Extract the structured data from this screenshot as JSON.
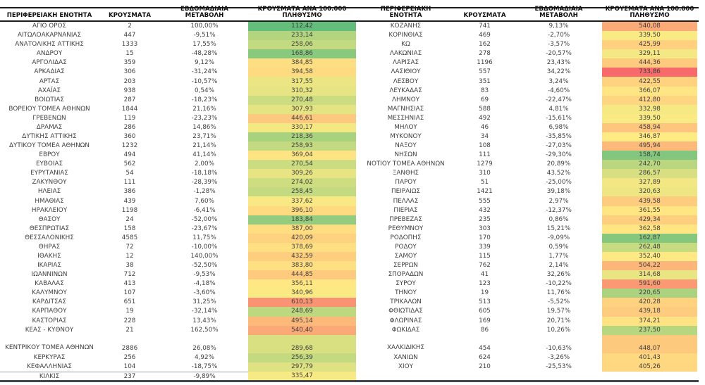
{
  "report": {
    "columns": [
      "region",
      "cases",
      "weekly_change",
      "cases_per_100k"
    ],
    "heatmap": {
      "applies_to": "cases_per_100k",
      "min": 112.42,
      "mid": 346.87,
      "max": 733.86,
      "min_color": "#63BE7B",
      "mid_color": "#FFEB84",
      "max_color": "#F8696B"
    },
    "tables": [
      {
        "id": "left",
        "headers": [
          {
            "name": "column-header-region",
            "lines": [
              "ΠΕΡΙΦΕΡΕΙΑΚΗ ΕΝΟΤΗΤΑ"
            ]
          },
          {
            "name": "column-header-cases",
            "lines": [
              "ΚΡΟΥΣΜΑΤΑ"
            ]
          },
          {
            "name": "column-header-weekly-change",
            "lines": [
              "ΕΒΔΟΜΑΔΙΑΙΑ",
              "ΜΕΤΑΒΟΛΗ"
            ]
          },
          {
            "name": "column-header-cases-per-100k",
            "lines": [
              "ΚΡΟΥΣΜΑΤΑ ΑΝΑ 100.000",
              "ΠΛΗΘΥΣΜΟ"
            ]
          }
        ],
        "tall_row_index": 34,
        "last_row_separator": true,
        "rows": [
          [
            "ΑΓΙΟ ΟΡΟΣ",
            "2",
            "100,00%",
            "112,42"
          ],
          [
            "ΑΙΤΩΛΟΑΚΑΡΝΑΝΙΑΣ",
            "447",
            "-9,51%",
            "233,14"
          ],
          [
            "ΑΝΑΤΟΛΙΚΗΣ ΑΤΤΙΚΗΣ",
            "1333",
            "17,55%",
            "258,06"
          ],
          [
            "ΑΝΔΡΟΥ",
            "15",
            "-48,28%",
            "168,86"
          ],
          [
            "ΑΡΓΟΛΙΔΑΣ",
            "359",
            "9,12%",
            "384,85"
          ],
          [
            "ΑΡΚΑΔΙΑΣ",
            "306",
            "-31,24%",
            "394,58"
          ],
          [
            "ΑΡΤΑΣ",
            "203",
            "-10,57%",
            "317,55"
          ],
          [
            "ΑΧΑΪΑΣ",
            "938",
            "0,54%",
            "310,32"
          ],
          [
            "ΒΟΙΩΤΙΑΣ",
            "287",
            "-18,23%",
            "270,48"
          ],
          [
            "ΒΟΡΕΙΟΥ ΤΟΜΕΑ ΑΘΗΝΩΝ",
            "1844",
            "21,16%",
            "307,93"
          ],
          [
            "ΓΡΕΒΕΝΩΝ",
            "119",
            "-23,23%",
            "446,61"
          ],
          [
            "ΔΡΑΜΑΣ",
            "286",
            "14,86%",
            "330,17"
          ],
          [
            "ΔΥΤΙΚΗΣ ΑΤΤΙΚΗΣ",
            "360",
            "23,71%",
            "218,36"
          ],
          [
            "ΔΥΤΙΚΟΥ ΤΟΜΕΑ ΑΘΗΝΩΝ",
            "1232",
            "21,14%",
            "258,93"
          ],
          [
            "ΕΒΡΟΥ",
            "494",
            "41,14%",
            "369,04"
          ],
          [
            "ΕΥΒΟΙΑΣ",
            "562",
            "2,00%",
            "270,54"
          ],
          [
            "ΕΥΡΥΤΑΝΙΑΣ",
            "54",
            "-18,18%",
            "309,26"
          ],
          [
            "ΖΑΚΥΝΘΟΥ",
            "111",
            "-28,39%",
            "274,02"
          ],
          [
            "ΗΛΕΙΑΣ",
            "386",
            "-1,28%",
            "258,45"
          ],
          [
            "ΗΜΑΘΙΑΣ",
            "439",
            "7,60%",
            "337,62"
          ],
          [
            "ΗΡΑΚΛΕΙΟΥ",
            "1198",
            "-6,41%",
            "396,10"
          ],
          [
            "ΘΑΣΟΥ",
            "24",
            "-52,00%",
            "183,84"
          ],
          [
            "ΘΕΣΠΡΩΤΙΑΣ",
            "158",
            "-23,67%",
            "387,00"
          ],
          [
            "ΘΕΣΣΑΛΟΝΙΚΗΣ",
            "4585",
            "11,75%",
            "420,09"
          ],
          [
            "ΘΗΡΑΣ",
            "72",
            "-10,00%",
            "378,69"
          ],
          [
            "ΙΘΑΚΗΣ",
            "12",
            "140,00%",
            "432,59"
          ],
          [
            "ΙΚΑΡΙΑΣ",
            "38",
            "-52,50%",
            "383,80"
          ],
          [
            "ΙΩΑΝΝΙΝΩΝ",
            "712",
            "-9,53%",
            "444,85"
          ],
          [
            "ΚΑΒΑΛΑΣ",
            "413",
            "-4,18%",
            "356,11"
          ],
          [
            "ΚΑΛΥΜΝΟΥ",
            "107",
            "-3,60%",
            "340,96"
          ],
          [
            "ΚΑΡΔΙΤΣΑΣ",
            "651",
            "31,25%",
            "610,13"
          ],
          [
            "ΚΑΡΠΑΘΟΥ",
            "19",
            "-32,14%",
            "248,69"
          ],
          [
            "ΚΑΣΤΟΡΙΑΣ",
            "228",
            "13,43%",
            "495,14"
          ],
          [
            "ΚΕΑΣ - ΚΥΘΝΟΥ",
            "21",
            "162,50%",
            "540,40"
          ],
          [
            "ΚΕΝΤΡΙΚΟΥ ΤΟΜΕΑ ΑΘΗΝΩΝ",
            "2886",
            "26,08%",
            "289,68"
          ],
          [
            "ΚΕΡΚΥΡΑΣ",
            "256",
            "4,92%",
            "256,39"
          ],
          [
            "ΚΕΦΑΛΛΗΝΙΑΣ",
            "104",
            "-18,75%",
            "297,79"
          ],
          [
            "ΚΙΛΚΙΣ",
            "237",
            "-9,89%",
            "335,47"
          ]
        ]
      },
      {
        "id": "right",
        "headers": [
          {
            "name": "column-header-region",
            "lines": [
              "ΠΕΡΙΦΕΡΕΙΑΚΗ",
              "ΕΝΟΤΗΤΑ"
            ]
          },
          {
            "name": "column-header-cases",
            "lines": [
              "ΚΡΟΥΣΜΑΤΑ"
            ]
          },
          {
            "name": "column-header-weekly-change",
            "lines": [
              "ΕΒΔΟΜΑΔΙΑΙΑ",
              "ΜΕΤΑΒΟΛΗ"
            ]
          },
          {
            "name": "column-header-cases-per-100k",
            "lines": [
              "ΚΡΟΥΣΜΑΤΑ ΑΝΑ 100.000",
              "ΠΛΗΘΥΣΜΟ"
            ]
          }
        ],
        "tall_row_index": 34,
        "last_row_separator": false,
        "rows": [
          [
            "ΚΟΖΑΝΗΣ",
            "741",
            "9,13%",
            "540,08"
          ],
          [
            "ΚΟΡΙΝΘΙΑΣ",
            "469",
            "-2,70%",
            "339,50"
          ],
          [
            "ΚΩ",
            "162",
            "-3,57%",
            "425,99"
          ],
          [
            "ΛΑΚΩΝΙΑΣ",
            "278",
            "-20,57%",
            "329,11"
          ],
          [
            "ΛΑΡΙΣΑΣ",
            "1196",
            "23,43%",
            "444,36"
          ],
          [
            "ΛΑΣΙΘΙΟΥ",
            "557",
            "34,22%",
            "733,86"
          ],
          [
            "ΛΕΣΒΟΥ",
            "351",
            "3,24%",
            "422,55"
          ],
          [
            "ΛΕΥΚΑΔΑΣ",
            "83",
            "-4,60%",
            "366,07"
          ],
          [
            "ΛΗΜΝΟΥ",
            "69",
            "-22,47%",
            "412,80"
          ],
          [
            "ΜΑΓΝΗΣΙΑΣ",
            "588",
            "4,81%",
            "332,98"
          ],
          [
            "ΜΕΣΣΗΝΙΑΣ",
            "492",
            "-15,61%",
            "339,50"
          ],
          [
            "ΜΗΛΟΥ",
            "46",
            "6,98%",
            "458,94"
          ],
          [
            "ΜΥΚΟΝΟΥ",
            "34",
            "-35,85%",
            "346,87"
          ],
          [
            "ΝΑΞΟΥ",
            "108",
            "-27,03%",
            "495,94"
          ],
          [
            "ΝΗΣΩΝ",
            "111",
            "-29,30%",
            "158,74"
          ],
          [
            "ΝΟΤΙΟΥ ΤΟΜΕΑ ΑΘΗΝΩΝ",
            "1279",
            "20,89%",
            "242,70"
          ],
          [
            "ΞΑΝΘΗΣ",
            "310",
            "43,52%",
            "286,57"
          ],
          [
            "ΠΑΡΟΥ",
            "51",
            "-25,00%",
            "327,89"
          ],
          [
            "ΠΕΙΡΑΙΩΣ",
            "1421",
            "39,18%",
            "320,63"
          ],
          [
            "ΠΕΛΛΑΣ",
            "555",
            "2,97%",
            "439,58"
          ],
          [
            "ΠΙΕΡΙΑΣ",
            "432",
            "-12,37%",
            "361,55"
          ],
          [
            "ΠΡΕΒΕΖΑΣ",
            "235",
            "0,86%",
            "429,34"
          ],
          [
            "ΡΕΘΥΜΝΟΥ",
            "303",
            "15,21%",
            "362,58"
          ],
          [
            "ΡΟΔΟΠΗΣ",
            "170",
            "-9,09%",
            "162,87"
          ],
          [
            "ΡΟΔΟΥ",
            "339",
            "0,59%",
            "262,48"
          ],
          [
            "ΣΑΜΟΥ",
            "115",
            "1,77%",
            "352,40"
          ],
          [
            "ΣΕΡΡΩΝ",
            "762",
            "2,14%",
            "504,22"
          ],
          [
            "ΣΠΟΡΑΔΩΝ",
            "41",
            "32,26%",
            "314,68"
          ],
          [
            "ΣΥΡΟΥ",
            "123",
            "-10,22%",
            "591,60"
          ],
          [
            "ΤΗΝΟΥ",
            "19",
            "11,76%",
            "220,65"
          ],
          [
            "ΤΡΙΚΑΛΩΝ",
            "513",
            "-5,52%",
            "420,28"
          ],
          [
            "ΦΘΙΩΤΙΔΑΣ",
            "605",
            "19,57%",
            "439,18"
          ],
          [
            "ΦΛΩΡΙΝΑΣ",
            "169",
            "20,71%",
            "374,21"
          ],
          [
            "ΦΩΚΙΔΑΣ",
            "86",
            "10,26%",
            "237,50"
          ],
          [
            "ΧΑΛΚΙΔΙΚΗΣ",
            "454",
            "-10,63%",
            "448,07"
          ],
          [
            "ΧΑΝΙΩΝ",
            "624",
            "-3,26%",
            "401,43"
          ],
          [
            "ΧΙΟΥ",
            "210",
            "-25,53%",
            "405,26"
          ]
        ]
      }
    ]
  }
}
